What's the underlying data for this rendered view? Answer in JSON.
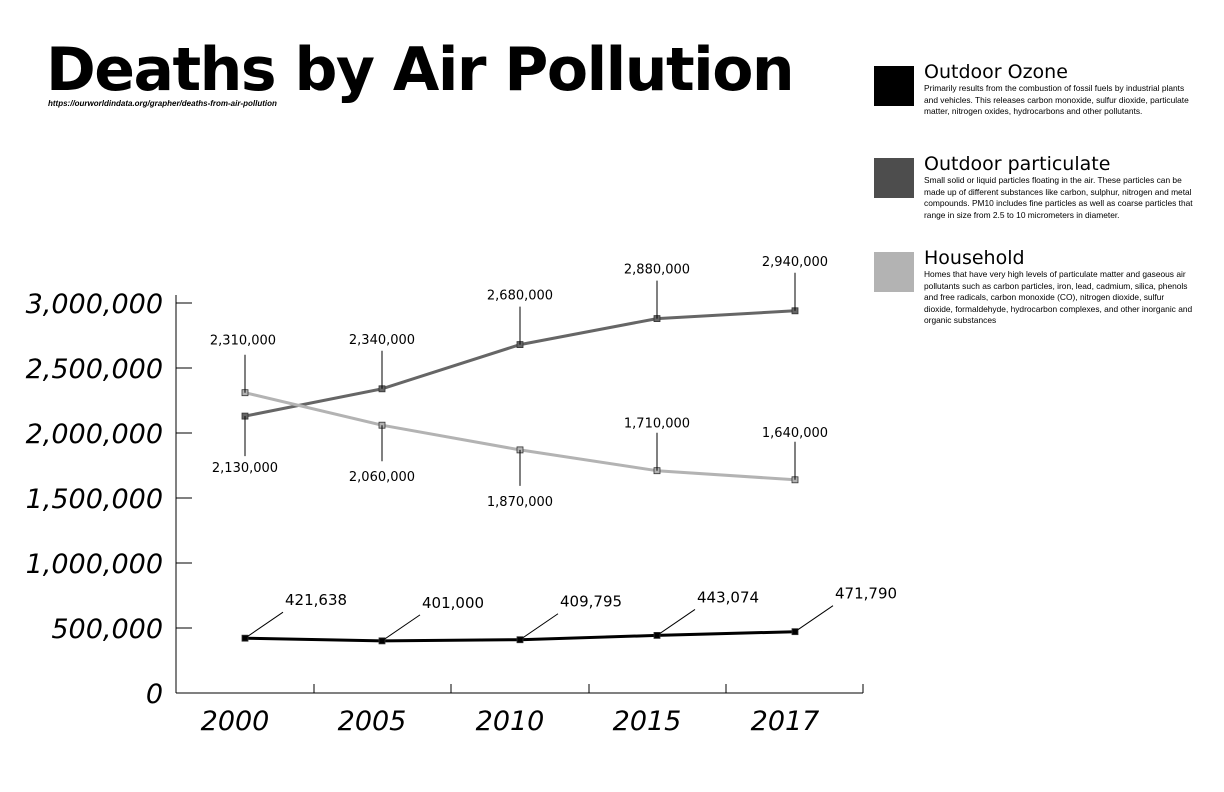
{
  "title": "Deaths by Air Pollution",
  "source": "https://ourworldindata.org/grapher/deaths-from-air-pollution",
  "legend": [
    {
      "name": "Outdoor Ozone",
      "color": "#000000",
      "description": "Primarily results from the combustion of fossil fuels by industrial plants and vehicles. This releases carbon monoxide, sulfur dioxide, particulate matter, nitrogen oxides, hydrocarbons and other pollutants."
    },
    {
      "name": "Outdoor particulate",
      "color": "#4d4d4d",
      "description": "Small solid or liquid particles floating in the air. These particles can be made up of different substances like carbon, sulphur, nitrogen and metal compounds. PM10 includes fine particles as well as coarse particles that range in size from 2.5 to 10 micrometers in diameter."
    },
    {
      "name": "Household",
      "color": "#b3b3b3",
      "description": "Homes that have very high levels of particulate matter and gaseous air pollutants such as carbon particles, iron, lead, cadmium, silica, phenols and free radicals, carbon monoxide (CO), nitrogen dioxide, sulfur dioxide, formaldehyde, hydrocarbon complexes, and other inorganic and organic substances"
    }
  ],
  "chart_data": {
    "type": "line",
    "title": "Deaths by Air Pollution",
    "x": [
      "2000",
      "2005",
      "2010",
      "2015",
      "2017"
    ],
    "y_tick_labels": [
      "0",
      "500,000",
      "1,000,000",
      "1,500,000",
      "2,000,000",
      "2,500,000",
      "3,000,000"
    ],
    "y_ticks": [
      0,
      500000,
      1000000,
      1500000,
      2000000,
      2500000,
      3000000
    ],
    "ylim": [
      0,
      3000000
    ],
    "grid": false,
    "legend_position": "right",
    "series": [
      {
        "name": "Outdoor Ozone",
        "color": "#000000",
        "values": [
          421638,
          401000,
          409795,
          443074,
          471790
        ],
        "labels": [
          "421,638",
          "401,000",
          "409,795",
          "443,074",
          "471,790"
        ]
      },
      {
        "name": "Outdoor particulate",
        "color": "#666666",
        "values": [
          2130000,
          2340000,
          2680000,
          2880000,
          2940000
        ],
        "labels": [
          "2,130,000",
          "2,340,000",
          "2,680,000",
          "2,880,000",
          "2,940,000"
        ]
      },
      {
        "name": "Household",
        "color": "#b3b3b3",
        "values": [
          2310000,
          2060000,
          1870000,
          1710000,
          1640000
        ],
        "labels": [
          "2,310,000",
          "2,060,000",
          "1,870,000",
          "1,710,000",
          "1,640,000"
        ]
      }
    ]
  }
}
